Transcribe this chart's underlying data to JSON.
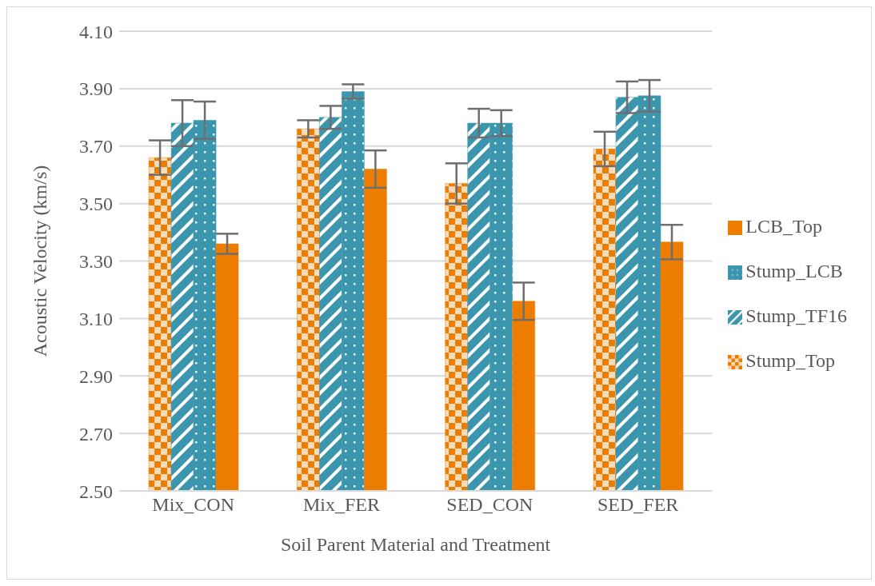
{
  "chart_data": {
    "type": "bar",
    "xlabel": "Soil Parent Material and Treatment",
    "ylabel": "Acoustic Velocity (km/s)",
    "categories": [
      "Mix_CON",
      "Mix_FER",
      "SED_CON",
      "SED_FER"
    ],
    "series": [
      {
        "name": "Stump_Top",
        "color": "#ed7d00",
        "values": [
          3.66,
          3.76,
          3.57,
          3.69
        ],
        "errors": [
          0.06,
          0.03,
          0.07,
          0.06
        ]
      },
      {
        "name": "Stump_TF16",
        "color": "#3b96ad",
        "values": [
          3.78,
          3.8,
          3.78,
          3.87
        ],
        "errors": [
          0.08,
          0.04,
          0.05,
          0.055
        ]
      },
      {
        "name": "Stump_LCB",
        "color": "#3b96ad",
        "values": [
          3.79,
          3.89,
          3.78,
          3.875
        ],
        "errors": [
          0.065,
          0.025,
          0.045,
          0.055
        ]
      },
      {
        "name": "LCB_Top",
        "color": "#ed7d00",
        "values": [
          3.36,
          3.62,
          3.16,
          3.366
        ],
        "errors": [
          0.035,
          0.065,
          0.065,
          0.06
        ]
      }
    ],
    "ylim": [
      2.5,
      4.1
    ],
    "yticks": [
      {
        "value": 2.5,
        "label": "2.50"
      },
      {
        "value": 2.7,
        "label": "2.70"
      },
      {
        "value": 2.9,
        "label": "2.90"
      },
      {
        "value": 3.1,
        "label": "3.10"
      },
      {
        "value": 3.3,
        "label": "3.30"
      },
      {
        "value": 3.5,
        "label": "3.50"
      },
      {
        "value": 3.7,
        "label": "3.70"
      },
      {
        "value": 3.9,
        "label": "3.90"
      },
      {
        "value": 4.1,
        "label": "4.10"
      }
    ],
    "grid": "y",
    "legend": "right"
  }
}
